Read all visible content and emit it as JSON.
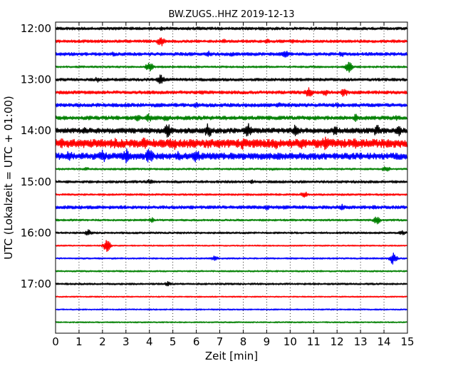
{
  "chart_data": {
    "type": "line",
    "title": "BW.ZUGS..HHZ 2019-12-13",
    "xlabel": "Zeit  [min]",
    "ylabel": "UTC (Lokalzeit = UTC + 01:00)",
    "xlim": [
      0,
      15
    ],
    "x_ticks": [
      "0",
      "1",
      "2",
      "3",
      "4",
      "5",
      "6",
      "7",
      "8",
      "9",
      "10",
      "11",
      "12",
      "13",
      "14",
      "15"
    ],
    "y_tick_labels": [
      "12:00",
      "13:00",
      "14:00",
      "15:00",
      "16:00",
      "17:00"
    ],
    "grid": "vertical-dotted",
    "colors": [
      "#000000",
      "#ff0000",
      "#0000ff",
      "#008000"
    ],
    "series": [
      {
        "color": "#000000",
        "amp": 0.22,
        "events": [
          [
            4.5,
            0.35
          ],
          [
            6.0,
            0.3
          ],
          [
            8.5,
            0.25
          ],
          [
            13.5,
            0.25
          ]
        ]
      },
      {
        "color": "#ff0000",
        "amp": 0.22,
        "events": [
          [
            4.5,
            0.9
          ],
          [
            7.2,
            0.35
          ],
          [
            9.0,
            0.45
          ],
          [
            10.1,
            0.3
          ]
        ]
      },
      {
        "color": "#0000ff",
        "amp": 0.25,
        "events": [
          [
            2.5,
            0.4
          ],
          [
            6.5,
            0.5
          ],
          [
            7.5,
            0.4
          ],
          [
            9.8,
            0.65
          ],
          [
            12.2,
            0.45
          ]
        ]
      },
      {
        "color": "#008000",
        "amp": 0.15,
        "events": [
          [
            4.0,
            0.7
          ],
          [
            12.5,
            0.85
          ]
        ]
      },
      {
        "color": "#000000",
        "amp": 0.22,
        "events": [
          [
            1.8,
            0.5
          ],
          [
            4.5,
            0.8
          ],
          [
            11.0,
            0.3
          ]
        ]
      },
      {
        "color": "#ff0000",
        "amp": 0.25,
        "events": [
          [
            6.2,
            0.35
          ],
          [
            10.8,
            0.8
          ],
          [
            11.5,
            0.55
          ],
          [
            12.3,
            0.75
          ]
        ]
      },
      {
        "color": "#0000ff",
        "amp": 0.28,
        "events": [
          [
            3.0,
            0.35
          ],
          [
            6.0,
            0.4
          ],
          [
            9.5,
            0.45
          ],
          [
            12.0,
            0.4
          ]
        ]
      },
      {
        "color": "#008000",
        "amp": 0.3,
        "events": [
          [
            3.5,
            0.55
          ],
          [
            4.0,
            0.7
          ],
          [
            4.7,
            0.6
          ],
          [
            12.8,
            0.65
          ],
          [
            14.5,
            0.5
          ]
        ]
      },
      {
        "color": "#000000",
        "amp": 0.4,
        "events": [
          [
            1.3,
            0.6
          ],
          [
            4.8,
            1.1
          ],
          [
            6.5,
            1.2
          ],
          [
            8.2,
            1.2
          ],
          [
            10.2,
            0.9
          ],
          [
            11.9,
            0.8
          ],
          [
            13.7,
            0.9
          ],
          [
            14.6,
            0.9
          ]
        ]
      },
      {
        "color": "#ff0000",
        "amp": 0.65,
        "events": [
          [
            0.3,
            0.9
          ],
          [
            2.5,
            0.9
          ],
          [
            3.8,
            1.0
          ],
          [
            5.0,
            1.2
          ],
          [
            6.5,
            0.9
          ],
          [
            8.0,
            1.0
          ],
          [
            9.4,
            0.9
          ],
          [
            10.5,
            0.9
          ],
          [
            11.5,
            1.2
          ],
          [
            12.8,
            0.9
          ],
          [
            14.2,
            0.8
          ]
        ]
      },
      {
        "color": "#0000ff",
        "amp": 0.5,
        "events": [
          [
            0.6,
            0.9
          ],
          [
            2.0,
            1.3
          ],
          [
            3.0,
            1.2
          ],
          [
            4.0,
            1.4
          ],
          [
            5.2,
            0.9
          ],
          [
            6.0,
            1.0
          ]
        ]
      },
      {
        "color": "#008000",
        "amp": 0.15,
        "events": [
          [
            1.3,
            0.3
          ],
          [
            9.2,
            0.25
          ],
          [
            14.1,
            0.6
          ]
        ]
      },
      {
        "color": "#000000",
        "amp": 0.2,
        "events": [
          [
            4.0,
            0.4
          ],
          [
            7.5,
            0.3
          ],
          [
            8.4,
            0.35
          ]
        ]
      },
      {
        "color": "#ff0000",
        "amp": 0.15,
        "events": [
          [
            10.6,
            0.5
          ]
        ]
      },
      {
        "color": "#0000ff",
        "amp": 0.25,
        "events": [
          [
            9.0,
            0.4
          ],
          [
            9.8,
            0.35
          ],
          [
            12.2,
            0.5
          ],
          [
            13.6,
            0.35
          ]
        ]
      },
      {
        "color": "#008000",
        "amp": 0.15,
        "events": [
          [
            4.1,
            0.4
          ],
          [
            13.7,
            0.65
          ]
        ]
      },
      {
        "color": "#000000",
        "amp": 0.15,
        "events": [
          [
            1.4,
            0.5
          ],
          [
            14.8,
            0.4
          ]
        ]
      },
      {
        "color": "#ff0000",
        "amp": 0.1,
        "events": [
          [
            2.2,
            0.95
          ]
        ]
      },
      {
        "color": "#0000ff",
        "amp": 0.12,
        "events": [
          [
            6.8,
            0.4
          ],
          [
            14.4,
            1.0
          ]
        ]
      },
      {
        "color": "#008000",
        "amp": 0.12,
        "events": []
      },
      {
        "color": "#000000",
        "amp": 0.15,
        "events": [
          [
            4.8,
            0.4
          ]
        ]
      },
      {
        "color": "#ff0000",
        "amp": 0.1,
        "events": []
      },
      {
        "color": "#0000ff",
        "amp": 0.1,
        "events": []
      },
      {
        "color": "#008000",
        "amp": 0.1,
        "events": []
      }
    ]
  }
}
